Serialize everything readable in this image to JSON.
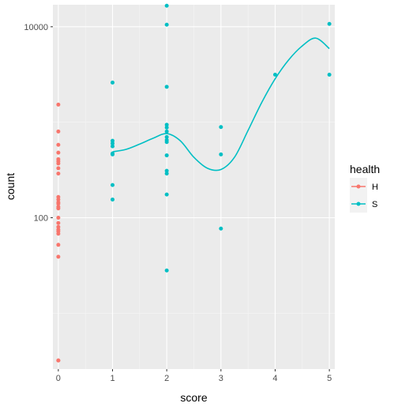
{
  "chart_data": {
    "type": "scatter",
    "xlabel": "score",
    "ylabel": "count",
    "x_ticks": [
      0,
      1,
      2,
      3,
      4,
      5
    ],
    "x_tick_labels": [
      "0",
      "1",
      "2",
      "3",
      "4",
      "5"
    ],
    "xlim": [
      -0.1,
      5.1
    ],
    "y_scale": "log10",
    "y_ticks": [
      100,
      10000
    ],
    "y_tick_labels": [
      "100",
      "10000"
    ],
    "ylim": [
      2.6,
      17000
    ],
    "grid": true,
    "panel_background": "#ebebeb",
    "legend": {
      "title": "health",
      "position": "right",
      "entries": [
        {
          "label": "H",
          "color": "#f8766d"
        },
        {
          "label": "S",
          "color": "#00bfc4"
        }
      ]
    },
    "series": [
      {
        "name": "H",
        "color": "#f8766d",
        "x": [
          0,
          0,
          0,
          0,
          0,
          0,
          0,
          0,
          0,
          0,
          0,
          0,
          0,
          0,
          0,
          0,
          0,
          0,
          0,
          0,
          0,
          0,
          0,
          0,
          0
        ],
        "y": [
          1530,
          800,
          580,
          480,
          410,
          390,
          370,
          330,
          290,
          165,
          155,
          145,
          140,
          130,
          125,
          100,
          88,
          80,
          75,
          72,
          68,
          52,
          39,
          3.2,
          3.2
        ]
      },
      {
        "name": "S",
        "color": "#00bfc4",
        "x": [
          1,
          1,
          1,
          1,
          1,
          1,
          1,
          1,
          2,
          2,
          2,
          2,
          2,
          2,
          2,
          2,
          2,
          2,
          2,
          2,
          2,
          2,
          3,
          3,
          3,
          4,
          5,
          5
        ],
        "y": [
          2600,
          640,
          600,
          560,
          470,
          460,
          220,
          155,
          16600,
          10500,
          2350,
          940,
          880,
          800,
          700,
          650,
          620,
          450,
          310,
          290,
          175,
          28,
          890,
          460,
          77,
          3150,
          10700,
          3150
        ]
      }
    ],
    "smooth_lines": [
      {
        "series": "S",
        "color": "#00bfc4",
        "x": [
          1.0,
          1.25,
          1.5,
          1.75,
          2.0,
          2.25,
          2.5,
          2.75,
          3.0,
          3.25,
          3.5,
          3.75,
          4.0,
          4.25,
          4.5,
          4.75,
          5.0
        ],
        "y": [
          490,
          520,
          590,
          680,
          760,
          640,
          430,
          330,
          320,
          430,
          820,
          1600,
          2850,
          4500,
          6300,
          7600,
          5900
        ]
      }
    ]
  }
}
